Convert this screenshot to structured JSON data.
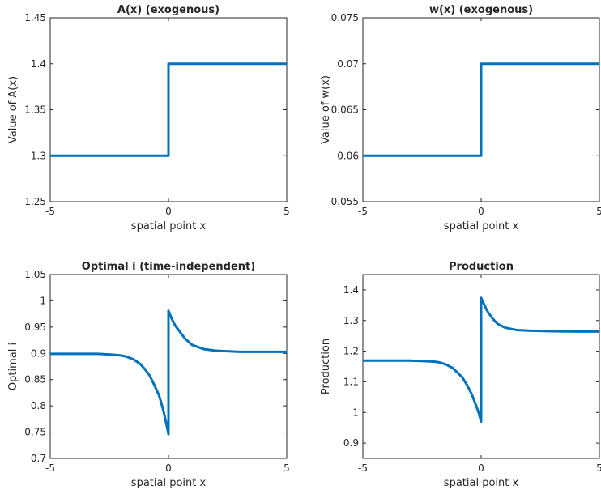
{
  "chart_data": [
    {
      "type": "line",
      "title": "A(x) (exogenous)",
      "xlabel": "spatial point x",
      "ylabel": "Value of A(x)",
      "xlim": [
        -5,
        5
      ],
      "ylim": [
        1.25,
        1.45
      ],
      "xticks": [
        -5,
        0,
        5
      ],
      "xtick_labels": [
        "-5",
        "0",
        "5"
      ],
      "yticks": [
        1.25,
        1.3,
        1.35,
        1.4,
        1.45
      ],
      "ytick_labels": [
        "1.25",
        "1.3",
        "1.35",
        "1.4",
        "1.45"
      ],
      "grid": false,
      "series": [
        {
          "x": [
            -5,
            0,
            0,
            5
          ],
          "y": [
            1.3,
            1.3,
            1.4,
            1.4
          ]
        }
      ]
    },
    {
      "type": "line",
      "title": "w(x) (exogenous)",
      "xlabel": "spatial point x",
      "ylabel": "Value of w(x)",
      "xlim": [
        -5,
        5
      ],
      "ylim": [
        0.055,
        0.075
      ],
      "xticks": [
        -5,
        0,
        5
      ],
      "xtick_labels": [
        "-5",
        "0",
        "5"
      ],
      "yticks": [
        0.055,
        0.06,
        0.065,
        0.07,
        0.075
      ],
      "ytick_labels": [
        "0.055",
        "0.06",
        "0.065",
        "0.07",
        "0.075"
      ],
      "grid": false,
      "series": [
        {
          "x": [
            -5,
            0,
            0,
            5
          ],
          "y": [
            0.06,
            0.06,
            0.07,
            0.07
          ]
        }
      ]
    },
    {
      "type": "line",
      "title": "Optimal i (time-independent)",
      "xlabel": "spatial point x",
      "ylabel": "Optimal i",
      "xlim": [
        -5,
        5
      ],
      "ylim": [
        0.7,
        1.05
      ],
      "xticks": [
        -5,
        0,
        5
      ],
      "xtick_labels": [
        "-5",
        "0",
        "5"
      ],
      "yticks": [
        0.7,
        0.75,
        0.8,
        0.85,
        0.9,
        0.95,
        1,
        1.05
      ],
      "ytick_labels": [
        "0.7",
        "0.75",
        "0.8",
        "0.85",
        "0.9",
        "0.95",
        "1",
        "1.05"
      ],
      "grid": false,
      "series": [
        {
          "x": [
            -5,
            -4,
            -3,
            -2.5,
            -2,
            -1.8,
            -1.5,
            -1.2,
            -1,
            -0.8,
            -0.6,
            -0.4,
            -0.3,
            -0.2,
            -0.1,
            0,
            0,
            0.1,
            0.2,
            0.3,
            0.5,
            0.7,
            1,
            1.5,
            2,
            3,
            4,
            5
          ],
          "y": [
            0.899,
            0.899,
            0.899,
            0.898,
            0.896,
            0.894,
            0.889,
            0.88,
            0.87,
            0.858,
            0.84,
            0.82,
            0.805,
            0.788,
            0.768,
            0.746,
            0.981,
            0.97,
            0.96,
            0.952,
            0.94,
            0.928,
            0.916,
            0.908,
            0.905,
            0.903,
            0.903,
            0.903
          ]
        }
      ]
    },
    {
      "type": "line",
      "title": "Production",
      "xlabel": "spatial point x",
      "ylabel": "Production",
      "xlim": [
        -5,
        5
      ],
      "ylim": [
        0.85,
        1.45
      ],
      "xticks": [
        -5,
        0,
        5
      ],
      "xtick_labels": [
        "-5",
        "0",
        "5"
      ],
      "yticks": [
        0.9,
        1,
        1.1,
        1.2,
        1.3,
        1.4
      ],
      "ytick_labels": [
        "0.9",
        "1",
        "1.1",
        "1.2",
        "1.3",
        "1.4"
      ],
      "grid": false,
      "series": [
        {
          "x": [
            -5,
            -4,
            -3,
            -2.5,
            -2,
            -1.8,
            -1.5,
            -1.2,
            -1,
            -0.8,
            -0.6,
            -0.4,
            -0.3,
            -0.2,
            -0.1,
            0,
            0,
            0.1,
            0.2,
            0.3,
            0.5,
            0.7,
            1,
            1.5,
            2,
            3,
            4,
            5
          ],
          "y": [
            1.169,
            1.169,
            1.169,
            1.168,
            1.166,
            1.164,
            1.157,
            1.145,
            1.13,
            1.115,
            1.09,
            1.06,
            1.04,
            1.02,
            0.998,
            0.97,
            1.374,
            1.357,
            1.34,
            1.326,
            1.305,
            1.289,
            1.277,
            1.269,
            1.267,
            1.265,
            1.264,
            1.264
          ]
        }
      ]
    }
  ]
}
